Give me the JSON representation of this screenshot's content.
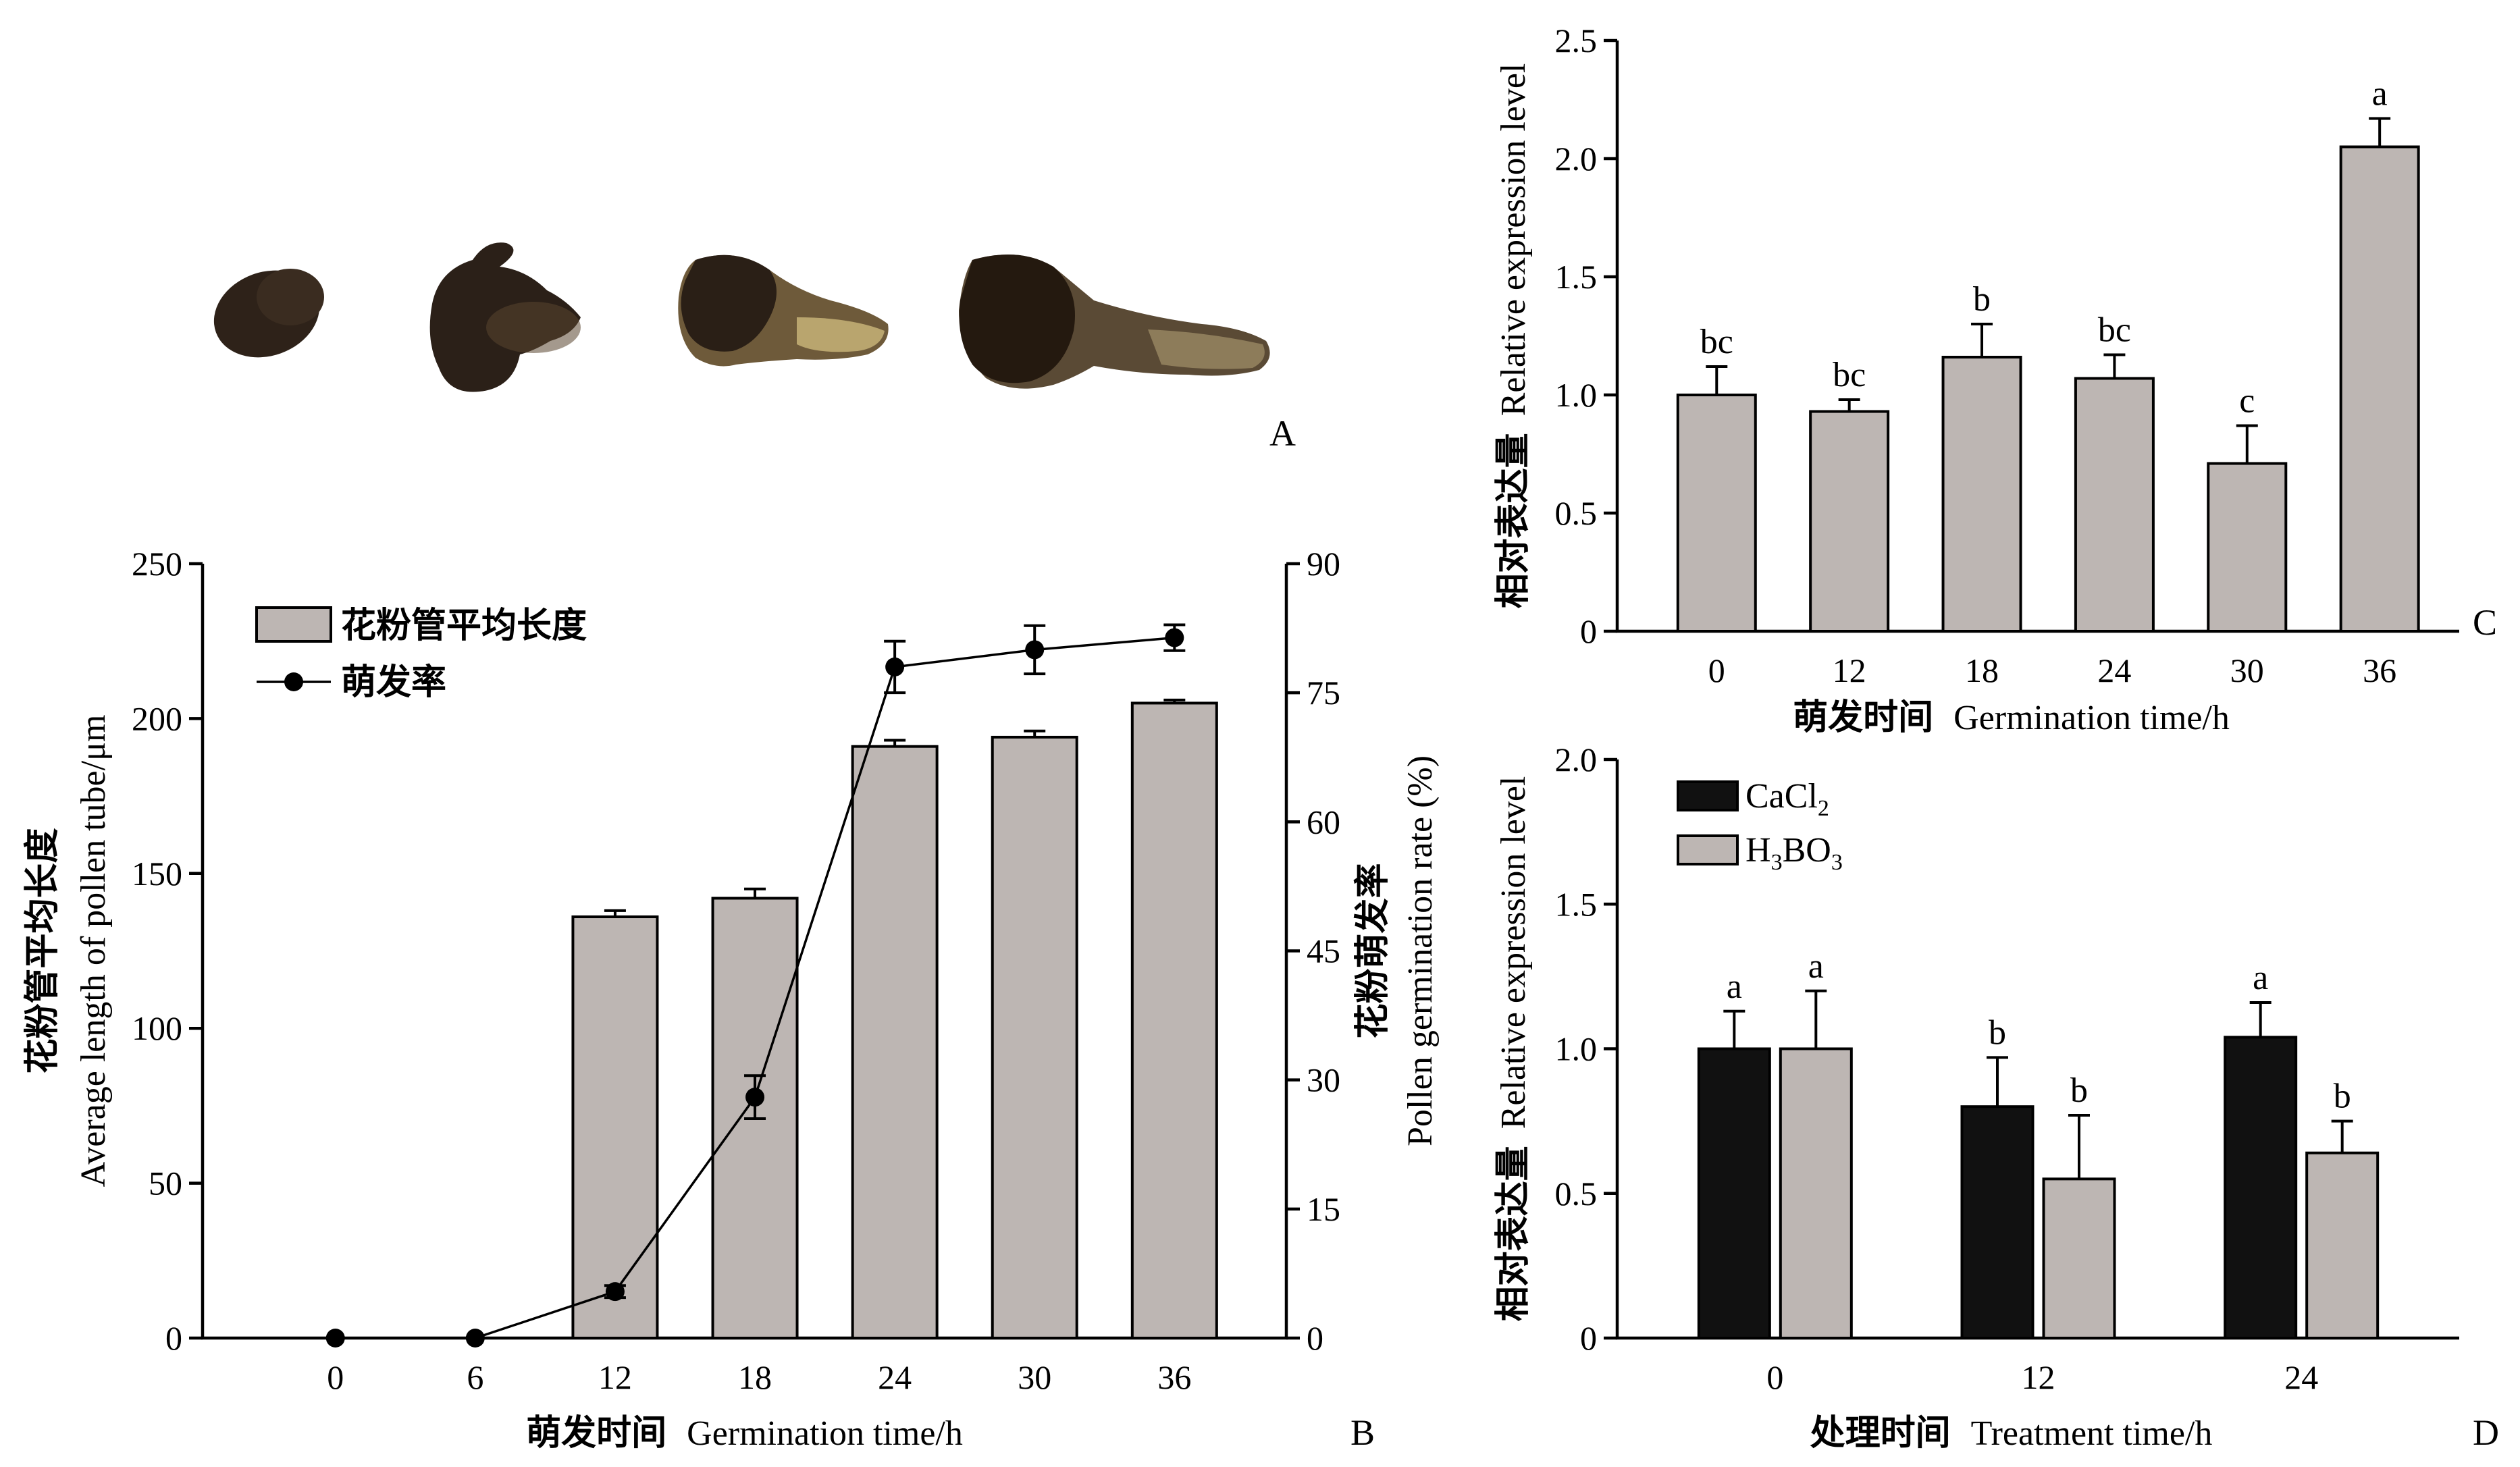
{
  "colors": {
    "gray_bar": "#bdb6b3",
    "black_bar": "#111111",
    "pollen": "#3a2a1e",
    "pollen_tube": "#8a7a58"
  },
  "panel_labels": [
    "A",
    "B",
    "C",
    "D"
  ],
  "panel_A": {
    "description_icon": "pollen-grain-images",
    "stages": 4
  },
  "chart_data": [
    {
      "id": "B",
      "type": "bar+line",
      "categories": [
        "0",
        "6",
        "12",
        "18",
        "24",
        "30",
        "36"
      ],
      "xlabel_zh": "萌发时间",
      "xlabel_en": "Germination time/h",
      "ylabel_left_zh": "花粉管平均长度",
      "ylabel_left_en": "Average length of pollen tube/μm",
      "ylabel_right_zh": "花粉萌发率",
      "ylabel_right_en": "Pollen germination rate (%)",
      "ylim_left": [
        0,
        250
      ],
      "yticks_left": [
        "0",
        "50",
        "100",
        "150",
        "200",
        "250"
      ],
      "ylim_right": [
        0,
        90
      ],
      "yticks_right": [
        "0",
        "15",
        "30",
        "45",
        "60",
        "75",
        "90"
      ],
      "legend": [
        "花粉管平均长度",
        "萌发率"
      ],
      "legend_position": "top-left",
      "series": [
        {
          "name": "花粉管平均长度",
          "kind": "bar",
          "axis": "left",
          "values": [
            0,
            0,
            136,
            142,
            191,
            194,
            205
          ],
          "errors": [
            0,
            0,
            2,
            3,
            2,
            2,
            1
          ]
        },
        {
          "name": "萌发率",
          "kind": "line",
          "axis": "right",
          "values": [
            0,
            0,
            5.4,
            28,
            78,
            80,
            81.4
          ],
          "errors": [
            0,
            0,
            0.7,
            2.5,
            3,
            2.8,
            1.5
          ]
        }
      ]
    },
    {
      "id": "C",
      "type": "bar",
      "categories": [
        "0",
        "12",
        "18",
        "24",
        "30",
        "36"
      ],
      "xlabel_zh": "萌发时间",
      "xlabel_en": "Germination time/h",
      "ylabel_zh": "相对表达量",
      "ylabel_en": "Relative expression level",
      "ylim": [
        0,
        2.5
      ],
      "yticks": [
        "0",
        "0.5",
        "1.0",
        "1.5",
        "2.0",
        "2.5"
      ],
      "values": [
        1.0,
        0.93,
        1.16,
        1.07,
        0.71,
        2.05
      ],
      "errors": [
        0.12,
        0.05,
        0.14,
        0.1,
        0.16,
        0.12
      ],
      "data_labels": [
        "bc",
        "bc",
        "b",
        "bc",
        "c",
        "a"
      ]
    },
    {
      "id": "D",
      "type": "bar",
      "categories": [
        "0",
        "12",
        "24"
      ],
      "xlabel_zh": "处理时间",
      "xlabel_en": "Treatment time/h",
      "ylabel_zh": "相对表达量",
      "ylabel_en": "Relative expression level",
      "ylim": [
        0,
        2.0
      ],
      "yticks": [
        "0",
        "0.5",
        "1.0",
        "1.5",
        "2.0"
      ],
      "legend_position": "top-left",
      "series": [
        {
          "name_main": "CaCl",
          "name_sub": "2",
          "values": [
            1.0,
            0.8,
            1.04
          ],
          "errors": [
            0.13,
            0.17,
            0.12
          ],
          "data_labels": [
            "a",
            "b",
            "a"
          ]
        },
        {
          "name_main": "H",
          "name_sub1": "3",
          "name_mid": "BO",
          "name_sub2": "3",
          "values": [
            1.0,
            0.55,
            0.64
          ],
          "errors": [
            0.2,
            0.22,
            0.11
          ],
          "data_labels": [
            "a",
            "b",
            "b"
          ]
        }
      ]
    }
  ]
}
